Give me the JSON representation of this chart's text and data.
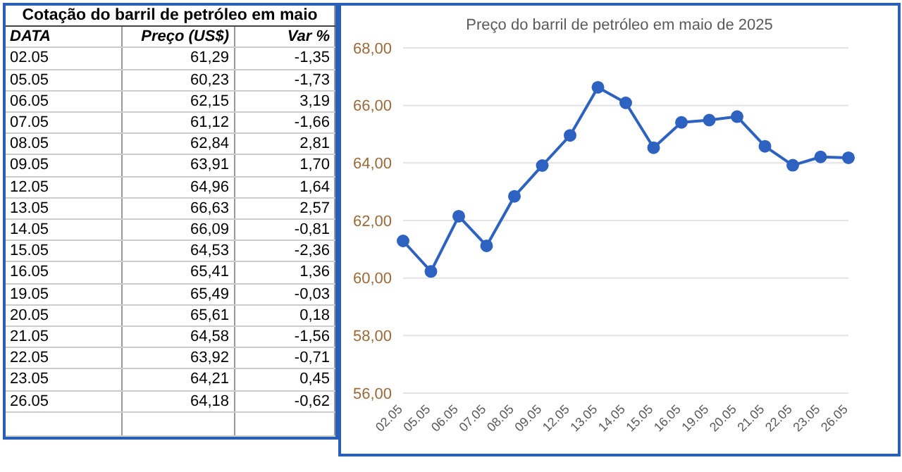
{
  "chart_data": [
    {
      "type": "other",
      "title": "Cotação do barril de petróleo em maio",
      "xlabel": "DATA",
      "categories": [
        "02.05",
        "05.05",
        "06.05",
        "07.05",
        "08.05",
        "09.05",
        "12.05",
        "13.05",
        "14.05",
        "15.05",
        "16.05",
        "19.05",
        "20.05",
        "21.05",
        "22.05",
        "23.05",
        "26.05"
      ],
      "data_labels": true,
      "series": [
        {
          "name": "Preço (US$)",
          "values": [
            61.29,
            60.23,
            62.15,
            61.12,
            62.84,
            63.91,
            64.96,
            66.63,
            66.09,
            64.53,
            65.41,
            65.49,
            65.61,
            64.58,
            63.92,
            64.21,
            64.18
          ],
          "value_labels": [
            "61,29",
            "60,23",
            "62,15",
            "61,12",
            "62,84",
            "63,91",
            "64,96",
            "66,63",
            "66,09",
            "64,53",
            "65,41",
            "65,49",
            "65,61",
            "64,58",
            "63,92",
            "64,21",
            "64,18"
          ]
        },
        {
          "name": "Var %",
          "values": [
            -1.35,
            -1.73,
            3.19,
            -1.66,
            2.81,
            1.7,
            1.64,
            2.57,
            -0.81,
            -2.36,
            1.36,
            -0.03,
            0.18,
            -1.56,
            -0.71,
            0.45,
            -0.62
          ],
          "value_labels": [
            "-1,35",
            "-1,73",
            "3,19",
            "-1,66",
            "2,81",
            "1,70",
            "1,64",
            "2,57",
            "-0,81",
            "-2,36",
            "1,36",
            "-0,03",
            "0,18",
            "-1,56",
            "-0,71",
            "0,45",
            "-0,62"
          ]
        }
      ]
    },
    {
      "type": "line",
      "title": "Preço do barril de petróleo em maio de 2025",
      "categories": [
        "02.05",
        "05.05",
        "06.05",
        "07.05",
        "08.05",
        "09.05",
        "12.05",
        "13.05",
        "14.05",
        "15.05",
        "16.05",
        "19.05",
        "20.05",
        "21.05",
        "22.05",
        "23.05",
        "26.05"
      ],
      "values": [
        61.29,
        60.23,
        62.15,
        61.12,
        62.84,
        63.91,
        64.96,
        66.63,
        66.09,
        64.53,
        65.41,
        65.49,
        65.61,
        64.58,
        63.92,
        64.21,
        64.18
      ],
      "color": "#2e62c0",
      "ylim": [
        56,
        68
      ],
      "yticks": [
        {
          "value": 56,
          "label": "56,00"
        },
        {
          "value": 58,
          "label": "58,00"
        },
        {
          "value": 60,
          "label": "60,00"
        },
        {
          "value": 62,
          "label": "62,00"
        },
        {
          "value": 64,
          "label": "64,00"
        },
        {
          "value": 66,
          "label": "66,00"
        },
        {
          "value": 68,
          "label": "68,00"
        }
      ],
      "grid": "y",
      "marker": "circle",
      "line_style": "solid"
    }
  ]
}
